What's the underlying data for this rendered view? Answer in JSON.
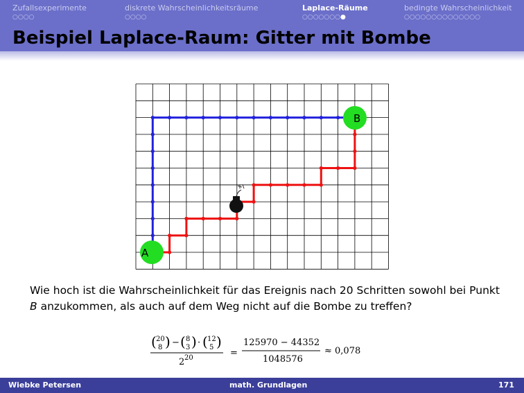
{
  "nav": {
    "sections": [
      {
        "label": "Zufallsexperimente",
        "dots": "○○○○",
        "active_dot": -1
      },
      {
        "label": "diskrete Wahrscheinlichkeitsräume",
        "dots": "○○○○",
        "active_dot": -1
      },
      {
        "label": "Laplace-Räume",
        "dots": "○○○○○○○○",
        "active_dot": 8
      },
      {
        "label": "bedingte Wahrscheinlichkeit",
        "dots": "○○○○○○○○○○○○○○",
        "active_dot": -1
      }
    ]
  },
  "slide": {
    "title": "Beispiel Laplace-Raum: Gitter mit Bombe"
  },
  "grid": {
    "label_a": "A",
    "label_b": "B",
    "colors": {
      "red_path": "#ee1111",
      "blue_path": "#2222dd",
      "endpoint": "#22dd22",
      "bomb": "#111111"
    }
  },
  "question": {
    "part1": "Wie hoch ist die Wahrscheinlichkeit für das Ereignis nach 20 Schritten sowohl bei Punkt ",
    "point": "B",
    "part2": " anzukommen, als auch auf dem Weg nicht auf die Bombe zu treffen?"
  },
  "formula": {
    "binom1_top": "20",
    "binom1_bot": "8",
    "minus": "−",
    "binom2_top": "8",
    "binom2_bot": "3",
    "dot": "·",
    "binom3_top": "12",
    "binom3_bot": "5",
    "denom_base": "2",
    "denom_exp": "20",
    "equals": "=",
    "num2": "125970 − 44352",
    "denom2": "1048576",
    "approx": "≈ 0,078"
  },
  "footer": {
    "author": "Wiebke Petersen",
    "course": "math. Grundlagen",
    "page": "171"
  }
}
